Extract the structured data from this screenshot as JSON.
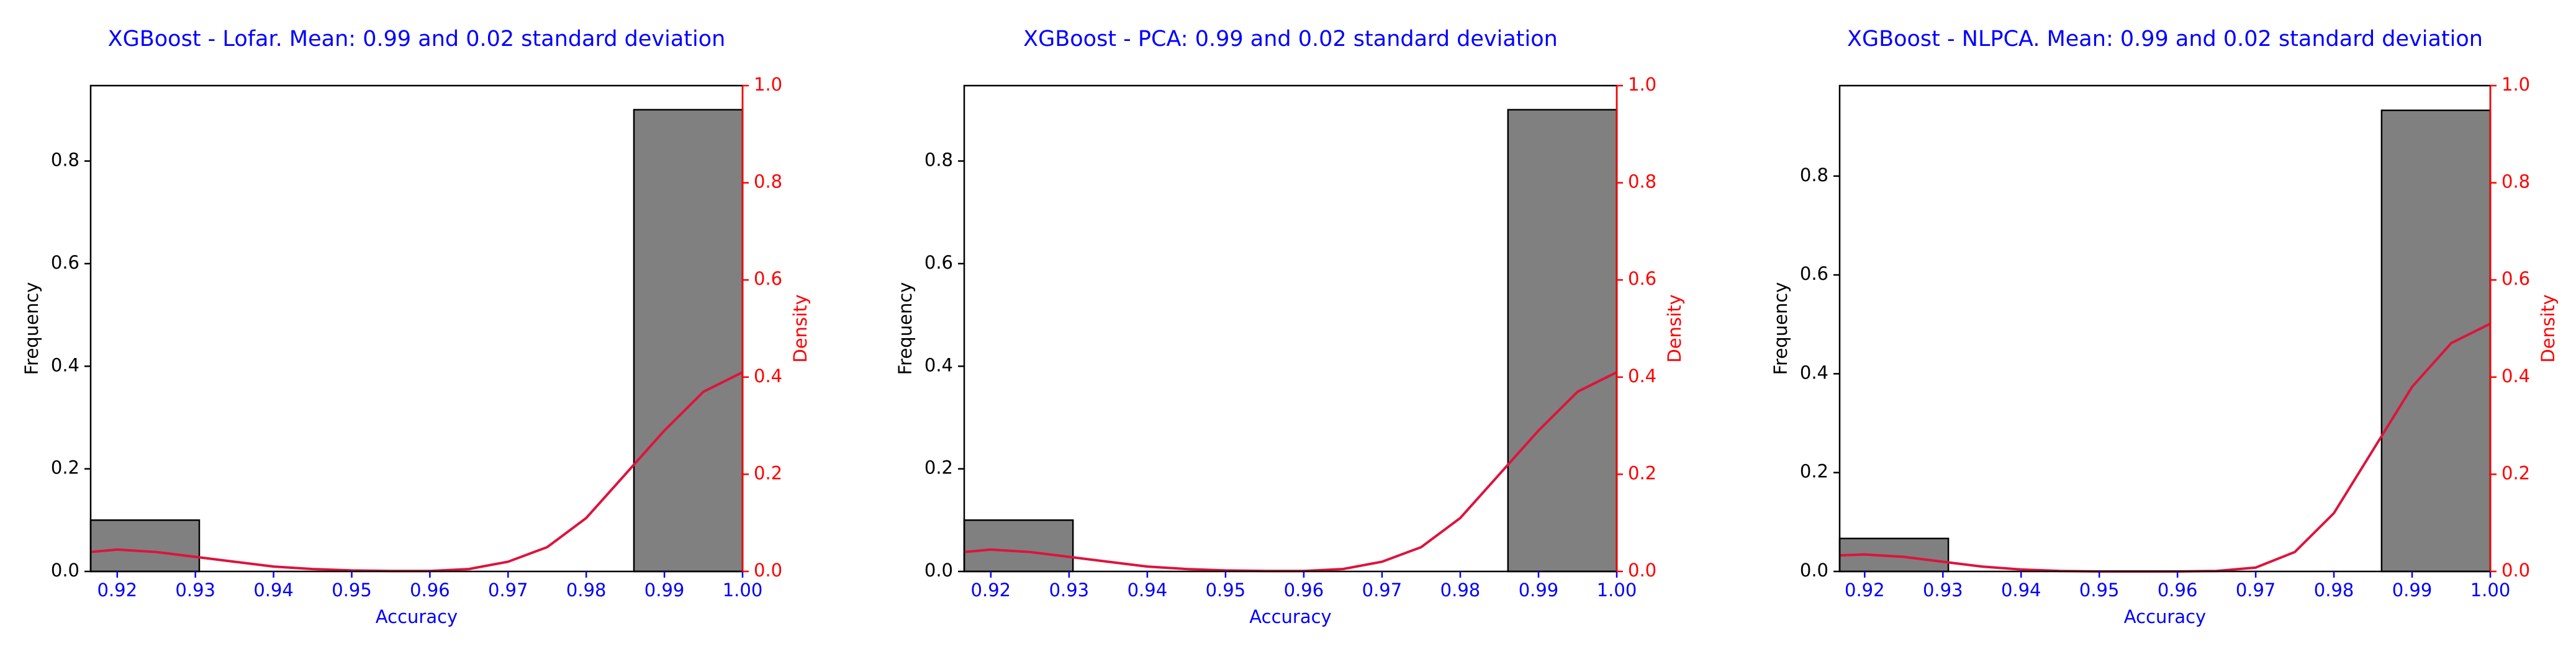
{
  "chart_data": [
    {
      "type": "histogram",
      "title": "XGBoost - Lofar.  Mean: 0.99 and 0.02 standard deviation",
      "xlabel": "Accuracy",
      "ylabel": "Frequency",
      "y2label": "Density",
      "bins": [
        0.9166,
        0.9305,
        0.9444,
        0.9583,
        0.9722,
        0.9861,
        1.0
      ],
      "values": [
        0.1,
        0,
        0,
        0,
        0,
        0.9
      ],
      "color": "#808080",
      "xlim": [
        0.9166,
        1.0
      ],
      "xticks": [
        0.92,
        0.93,
        0.94,
        0.95,
        0.96,
        0.97,
        0.98,
        0.99,
        {
          "value": 1.0,
          "label": "1.00"
        }
      ],
      "ylim": [
        0,
        0.947
      ],
      "yticks": [
        {
          "value": 0,
          "label": "0.0"
        },
        0.2,
        0.4,
        0.6,
        0.8
      ],
      "y2lim": [
        0,
        1.0
      ],
      "y2ticks": [
        {
          "value": 0,
          "label": "0.0"
        },
        0.2,
        0.4,
        0.6,
        0.8,
        {
          "value": 1.0,
          "label": "1.0"
        }
      ],
      "series": [
        {
          "axis": "y2",
          "color": "#dc143c",
          "x": [
            0.9166,
            0.92,
            0.925,
            0.93,
            0.935,
            0.94,
            0.945,
            0.95,
            0.955,
            0.96,
            0.965,
            0.97,
            0.975,
            0.98,
            0.985,
            0.99,
            0.995,
            1.0
          ],
          "values": [
            0.04,
            0.045,
            0.04,
            0.03,
            0.02,
            0.01,
            0.005,
            0.002,
            0.001,
            0.001,
            0.005,
            0.02,
            0.05,
            0.11,
            0.2,
            0.29,
            0.37,
            0.41
          ]
        }
      ]
    },
    {
      "type": "histogram",
      "title": "XGBoost - PCA: 0.99 and 0.02 standard deviation",
      "xlabel": "Accuracy",
      "ylabel": "Frequency",
      "y2label": "Density",
      "bins": [
        0.9166,
        0.9305,
        0.9444,
        0.9583,
        0.9722,
        0.9861,
        1.0
      ],
      "values": [
        0.1,
        0,
        0,
        0,
        0,
        0.9
      ],
      "color": "#808080",
      "xlim": [
        0.9166,
        1.0
      ],
      "xticks": [
        0.92,
        0.93,
        0.94,
        0.95,
        0.96,
        0.97,
        0.98,
        0.99,
        {
          "value": 1.0,
          "label": "1.00"
        }
      ],
      "ylim": [
        0,
        0.947
      ],
      "yticks": [
        {
          "value": 0,
          "label": "0.0"
        },
        0.2,
        0.4,
        0.6,
        0.8
      ],
      "y2lim": [
        0,
        1.0
      ],
      "y2ticks": [
        {
          "value": 0,
          "label": "0.0"
        },
        0.2,
        0.4,
        0.6,
        0.8,
        {
          "value": 1.0,
          "label": "1.0"
        }
      ],
      "series": [
        {
          "axis": "y2",
          "color": "#dc143c",
          "x": [
            0.9166,
            0.92,
            0.925,
            0.93,
            0.935,
            0.94,
            0.945,
            0.95,
            0.955,
            0.96,
            0.965,
            0.97,
            0.975,
            0.98,
            0.985,
            0.99,
            0.995,
            1.0
          ],
          "values": [
            0.04,
            0.045,
            0.04,
            0.03,
            0.02,
            0.01,
            0.005,
            0.002,
            0.001,
            0.001,
            0.005,
            0.02,
            0.05,
            0.11,
            0.2,
            0.29,
            0.37,
            0.41
          ]
        }
      ]
    },
    {
      "type": "histogram",
      "title": "XGBoost - NLPCA.  Mean: 0.99 and 0.02 standard deviation",
      "xlabel": "Accuracy",
      "ylabel": "Frequency",
      "y2label": "Density",
      "bins": [
        0.9168,
        0.9307,
        0.9445,
        0.9584,
        0.9723,
        0.9861,
        1.0
      ],
      "values": [
        0.0667,
        0,
        0,
        0,
        0,
        0.933
      ],
      "color": "#808080",
      "xlim": [
        0.9168,
        1.0
      ],
      "xticks": [
        0.92,
        0.93,
        0.94,
        0.95,
        0.96,
        0.97,
        0.98,
        0.99,
        {
          "value": 1.0,
          "label": "1.00"
        }
      ],
      "ylim": [
        0,
        0.983
      ],
      "yticks": [
        {
          "value": 0,
          "label": "0.0"
        },
        0.2,
        0.4,
        0.6,
        0.8
      ],
      "y2lim": [
        0,
        1.0
      ],
      "y2ticks": [
        {
          "value": 0,
          "label": "0.0"
        },
        0.2,
        0.4,
        0.6,
        0.8,
        {
          "value": 1.0,
          "label": "1.0"
        }
      ],
      "series": [
        {
          "axis": "y2",
          "color": "#dc143c",
          "x": [
            0.9168,
            0.92,
            0.925,
            0.93,
            0.935,
            0.94,
            0.945,
            0.95,
            0.955,
            0.96,
            0.965,
            0.97,
            0.975,
            0.98,
            0.985,
            0.99,
            0.995,
            1.0
          ],
          "values": [
            0.033,
            0.035,
            0.03,
            0.02,
            0.01,
            0.004,
            0.001,
            0.0,
            0.0,
            0.0,
            0.001,
            0.008,
            0.04,
            0.12,
            0.25,
            0.38,
            0.47,
            0.51
          ]
        }
      ]
    }
  ]
}
